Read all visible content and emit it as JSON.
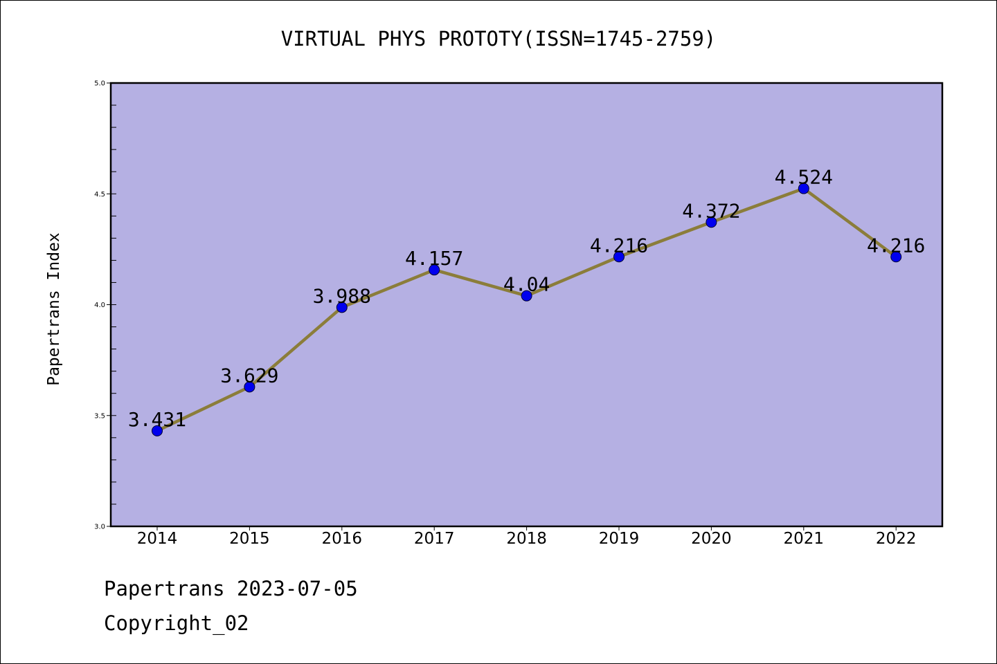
{
  "chart_data": {
    "type": "line",
    "title": "VIRTUAL PHYS PROTOTY(ISSN=1745-2759)",
    "xlabel": "",
    "ylabel": "Papertrans Index",
    "categories": [
      "2014",
      "2015",
      "2016",
      "2017",
      "2018",
      "2019",
      "2020",
      "2021",
      "2022"
    ],
    "series": [
      {
        "values": [
          3.431,
          3.629,
          3.988,
          4.157,
          4.04,
          4.216,
          4.372,
          4.524,
          4.216
        ],
        "labels": [
          "3.431",
          "3.629",
          "3.988",
          "4.157",
          "4.04",
          "4.216",
          "4.372",
          "4.524",
          "4.216"
        ]
      }
    ],
    "ylim": [
      3.0,
      5.0
    ],
    "yticks": [
      "3.0",
      "3.5",
      "4.0",
      "4.5",
      "5.0"
    ],
    "grid": false,
    "colors": {
      "plot_background": "#b5b0e3",
      "line": "#8b7d3a",
      "marker": "#0000ee"
    }
  },
  "footer": {
    "line1": "Papertrans 2023-07-05",
    "line2": "Copyright_02"
  }
}
